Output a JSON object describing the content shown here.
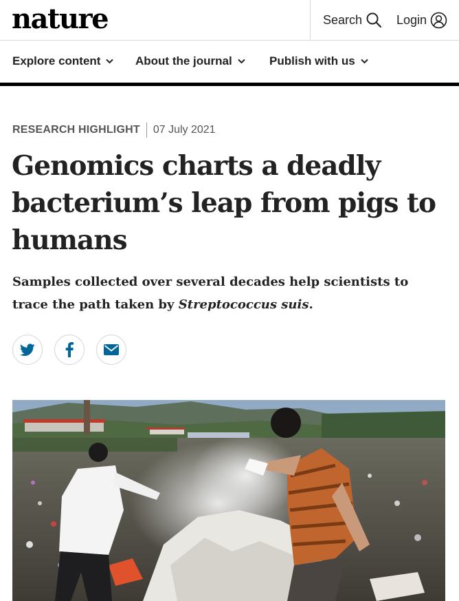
{
  "header": {
    "logo": "nature",
    "search_label": "Search",
    "login_label": "Login"
  },
  "nav": {
    "items": [
      {
        "label": "Explore content"
      },
      {
        "label": "About the journal"
      },
      {
        "label": "Publish with us"
      }
    ]
  },
  "article": {
    "type": "RESEARCH HIGHLIGHT",
    "date": "07 July 2021",
    "title": "Genomics charts a deadly bacterium’s leap from pigs to humans",
    "standfirst_pre": "Samples collected over several decades help scientists to trace the path taken by ",
    "standfirst_species": "Streptococcus suis",
    "standfirst_post": "."
  },
  "share": {
    "icons": [
      "twitter-icon",
      "facebook-icon",
      "email-icon"
    ],
    "icon_color": "#006699"
  },
  "colors": {
    "text": "#222222",
    "accent": "#006699",
    "nav_border": "#000000"
  }
}
